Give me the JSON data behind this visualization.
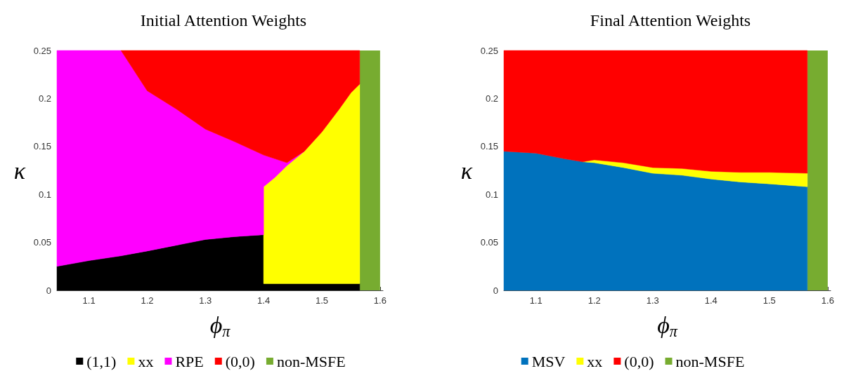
{
  "chart_data": [
    {
      "type": "area",
      "stacked": true,
      "title": "Initial Attention Weights",
      "xlabel": "ϕ$_{π}$",
      "ylabel": "κ",
      "legend": "bottom",
      "x": [
        1.045,
        1.1,
        1.155,
        1.2,
        1.25,
        1.3,
        1.35,
        1.4,
        1.4,
        1.42,
        1.44,
        1.47,
        1.5,
        1.53,
        1.55,
        1.565
      ],
      "xlim": [
        1.045,
        1.605
      ],
      "xticks": [
        1.1,
        1.2,
        1.3,
        1.4,
        1.5,
        1.6
      ],
      "ylim": [
        0,
        0.25
      ],
      "yticks": [
        0,
        0.05,
        0.1,
        0.15,
        0.2,
        0.25
      ],
      "series": [
        {
          "name": "(1,1)",
          "color": "#000000",
          "values": [
            0.025,
            0.031,
            0.036,
            0.041,
            0.047,
            0.053,
            0.056,
            0.058,
            0.007,
            0.007,
            0.007,
            0.007,
            0.007,
            0.007,
            0.007,
            0.007
          ]
        },
        {
          "name": "xx",
          "color": "#ffff00",
          "values": [
            null,
            null,
            null,
            null,
            null,
            null,
            null,
            null,
            0.101,
            0.111,
            0.123,
            0.138,
            0.158,
            0.182,
            0.199,
            0.208
          ]
        },
        {
          "name": "RPE",
          "color": "#ff00ff",
          "values": [
            0.225,
            0.219,
            0.214,
            0.167,
            0.142,
            0.115,
            0.099,
            0.083,
            0.033,
            0.019,
            0.003,
            0,
            null,
            null,
            null,
            null
          ]
        },
        {
          "name": "(0,0)",
          "color": "#ff0000",
          "values": [
            null,
            null,
            0,
            0.042,
            0.061,
            0.082,
            0.095,
            0.109,
            0.109,
            0.113,
            0.117,
            0.105,
            0.085,
            0.061,
            0.044,
            0.035
          ]
        }
      ],
      "bands": [
        {
          "axis": "x",
          "from": 1.565,
          "to": 1.6,
          "label": "non-MSFE",
          "color": "#77ac30"
        }
      ]
    },
    {
      "type": "area",
      "stacked": true,
      "title": "Final Attention Weights",
      "xlabel": "ϕ$_{π}$",
      "ylabel": "κ",
      "legend": "bottom",
      "x": [
        1.045,
        1.1,
        1.15,
        1.18,
        1.2,
        1.25,
        1.3,
        1.35,
        1.4,
        1.45,
        1.5,
        1.565
      ],
      "xlim": [
        1.045,
        1.605
      ],
      "xticks": [
        1.1,
        1.2,
        1.3,
        1.4,
        1.5,
        1.6
      ],
      "ylim": [
        0,
        0.25
      ],
      "yticks": [
        0,
        0.05,
        0.1,
        0.15,
        0.2,
        0.25
      ],
      "series": [
        {
          "name": "MSV",
          "color": "#0072bd",
          "values": [
            0.145,
            0.143,
            0.137,
            0.134,
            0.133,
            0.128,
            0.122,
            0.12,
            0.116,
            0.113,
            0.111,
            0.108
          ]
        },
        {
          "name": "xx",
          "color": "#ffff00",
          "values": [
            null,
            null,
            null,
            0,
            0.003,
            0.005,
            0.006,
            0.007,
            0.008,
            0.01,
            0.012,
            0.014
          ]
        },
        {
          "name": "(0,0)",
          "color": "#ff0000",
          "values": [
            0.105,
            0.107,
            0.113,
            0.116,
            0.114,
            0.117,
            0.122,
            0.123,
            0.126,
            0.127,
            0.127,
            0.128
          ]
        }
      ],
      "bands": [
        {
          "axis": "x",
          "from": 1.565,
          "to": 1.6,
          "label": "non-MSFE",
          "color": "#77ac30"
        }
      ]
    }
  ]
}
